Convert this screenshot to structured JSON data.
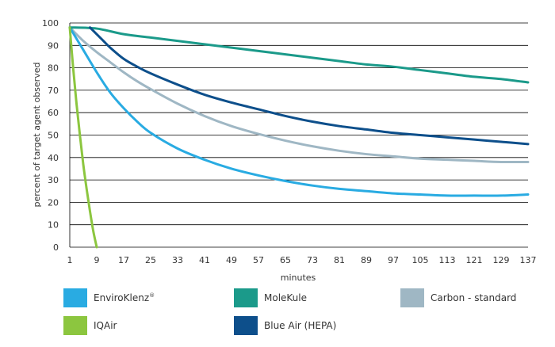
{
  "chart_data": {
    "type": "line",
    "title": "",
    "xlabel": "minutes",
    "ylabel": "percent of target agent observed",
    "xlim": [
      1,
      137
    ],
    "ylim": [
      0,
      100
    ],
    "x_ticks": [
      1,
      9,
      17,
      25,
      33,
      41,
      49,
      57,
      65,
      73,
      81,
      89,
      97,
      105,
      113,
      121,
      129,
      137
    ],
    "y_ticks": [
      0,
      10,
      20,
      30,
      40,
      50,
      60,
      70,
      80,
      90,
      100
    ],
    "grid": "horizontal",
    "legend_position": "bottom",
    "series": [
      {
        "name": "EnviroKlenz",
        "legend_suffix": "®",
        "color": "#29abe2",
        "x": [
          1,
          5,
          9,
          13,
          17,
          21,
          25,
          33,
          41,
          49,
          57,
          65,
          73,
          81,
          89,
          97,
          105,
          113,
          121,
          129,
          137
        ],
        "y": [
          98,
          88,
          78,
          69,
          62,
          56,
          51,
          44,
          39,
          35,
          32,
          29.5,
          27.5,
          26,
          25,
          24,
          23.5,
          23,
          23,
          23,
          23.5
        ]
      },
      {
        "name": "MoleKule",
        "color": "#1b9a8a",
        "x": [
          1,
          9,
          17,
          25,
          33,
          41,
          49,
          57,
          65,
          73,
          81,
          89,
          97,
          105,
          113,
          121,
          129,
          137
        ],
        "y": [
          98,
          97.5,
          95,
          93.5,
          92,
          90.5,
          89,
          87.5,
          86,
          84.5,
          83,
          81.5,
          80.5,
          79,
          77.5,
          76,
          75,
          73.5
        ]
      },
      {
        "name": "Carbon - standard",
        "color": "#9fb7c4",
        "x": [
          1,
          5,
          9,
          13,
          17,
          21,
          25,
          33,
          41,
          49,
          57,
          65,
          73,
          81,
          89,
          97,
          105,
          113,
          121,
          129,
          137
        ],
        "y": [
          98,
          92,
          87,
          82.5,
          78,
          74,
          70.5,
          64,
          58.5,
          54,
          50.5,
          47.5,
          45,
          43,
          41.5,
          40.5,
          39.5,
          39,
          38.5,
          38,
          38
        ]
      },
      {
        "name": "IQAir",
        "color": "#8cc63f",
        "x": [
          1,
          2,
          3,
          4,
          5,
          6,
          7,
          8,
          9
        ],
        "y": [
          98,
          80,
          64,
          50,
          37,
          26,
          16,
          7,
          0
        ]
      },
      {
        "name": "Blue Air (HEPA)",
        "color": "#0d4f8b",
        "x": [
          7,
          9,
          11,
          13,
          17,
          21,
          25,
          33,
          41,
          49,
          57,
          65,
          73,
          81,
          89,
          97,
          105,
          113,
          121,
          129,
          137
        ],
        "y": [
          98,
          95,
          92,
          89,
          84,
          80.5,
          77.5,
          72.5,
          68,
          64.5,
          61.5,
          58.5,
          56,
          54,
          52.5,
          51,
          50,
          49,
          48,
          47,
          46
        ]
      }
    ]
  }
}
